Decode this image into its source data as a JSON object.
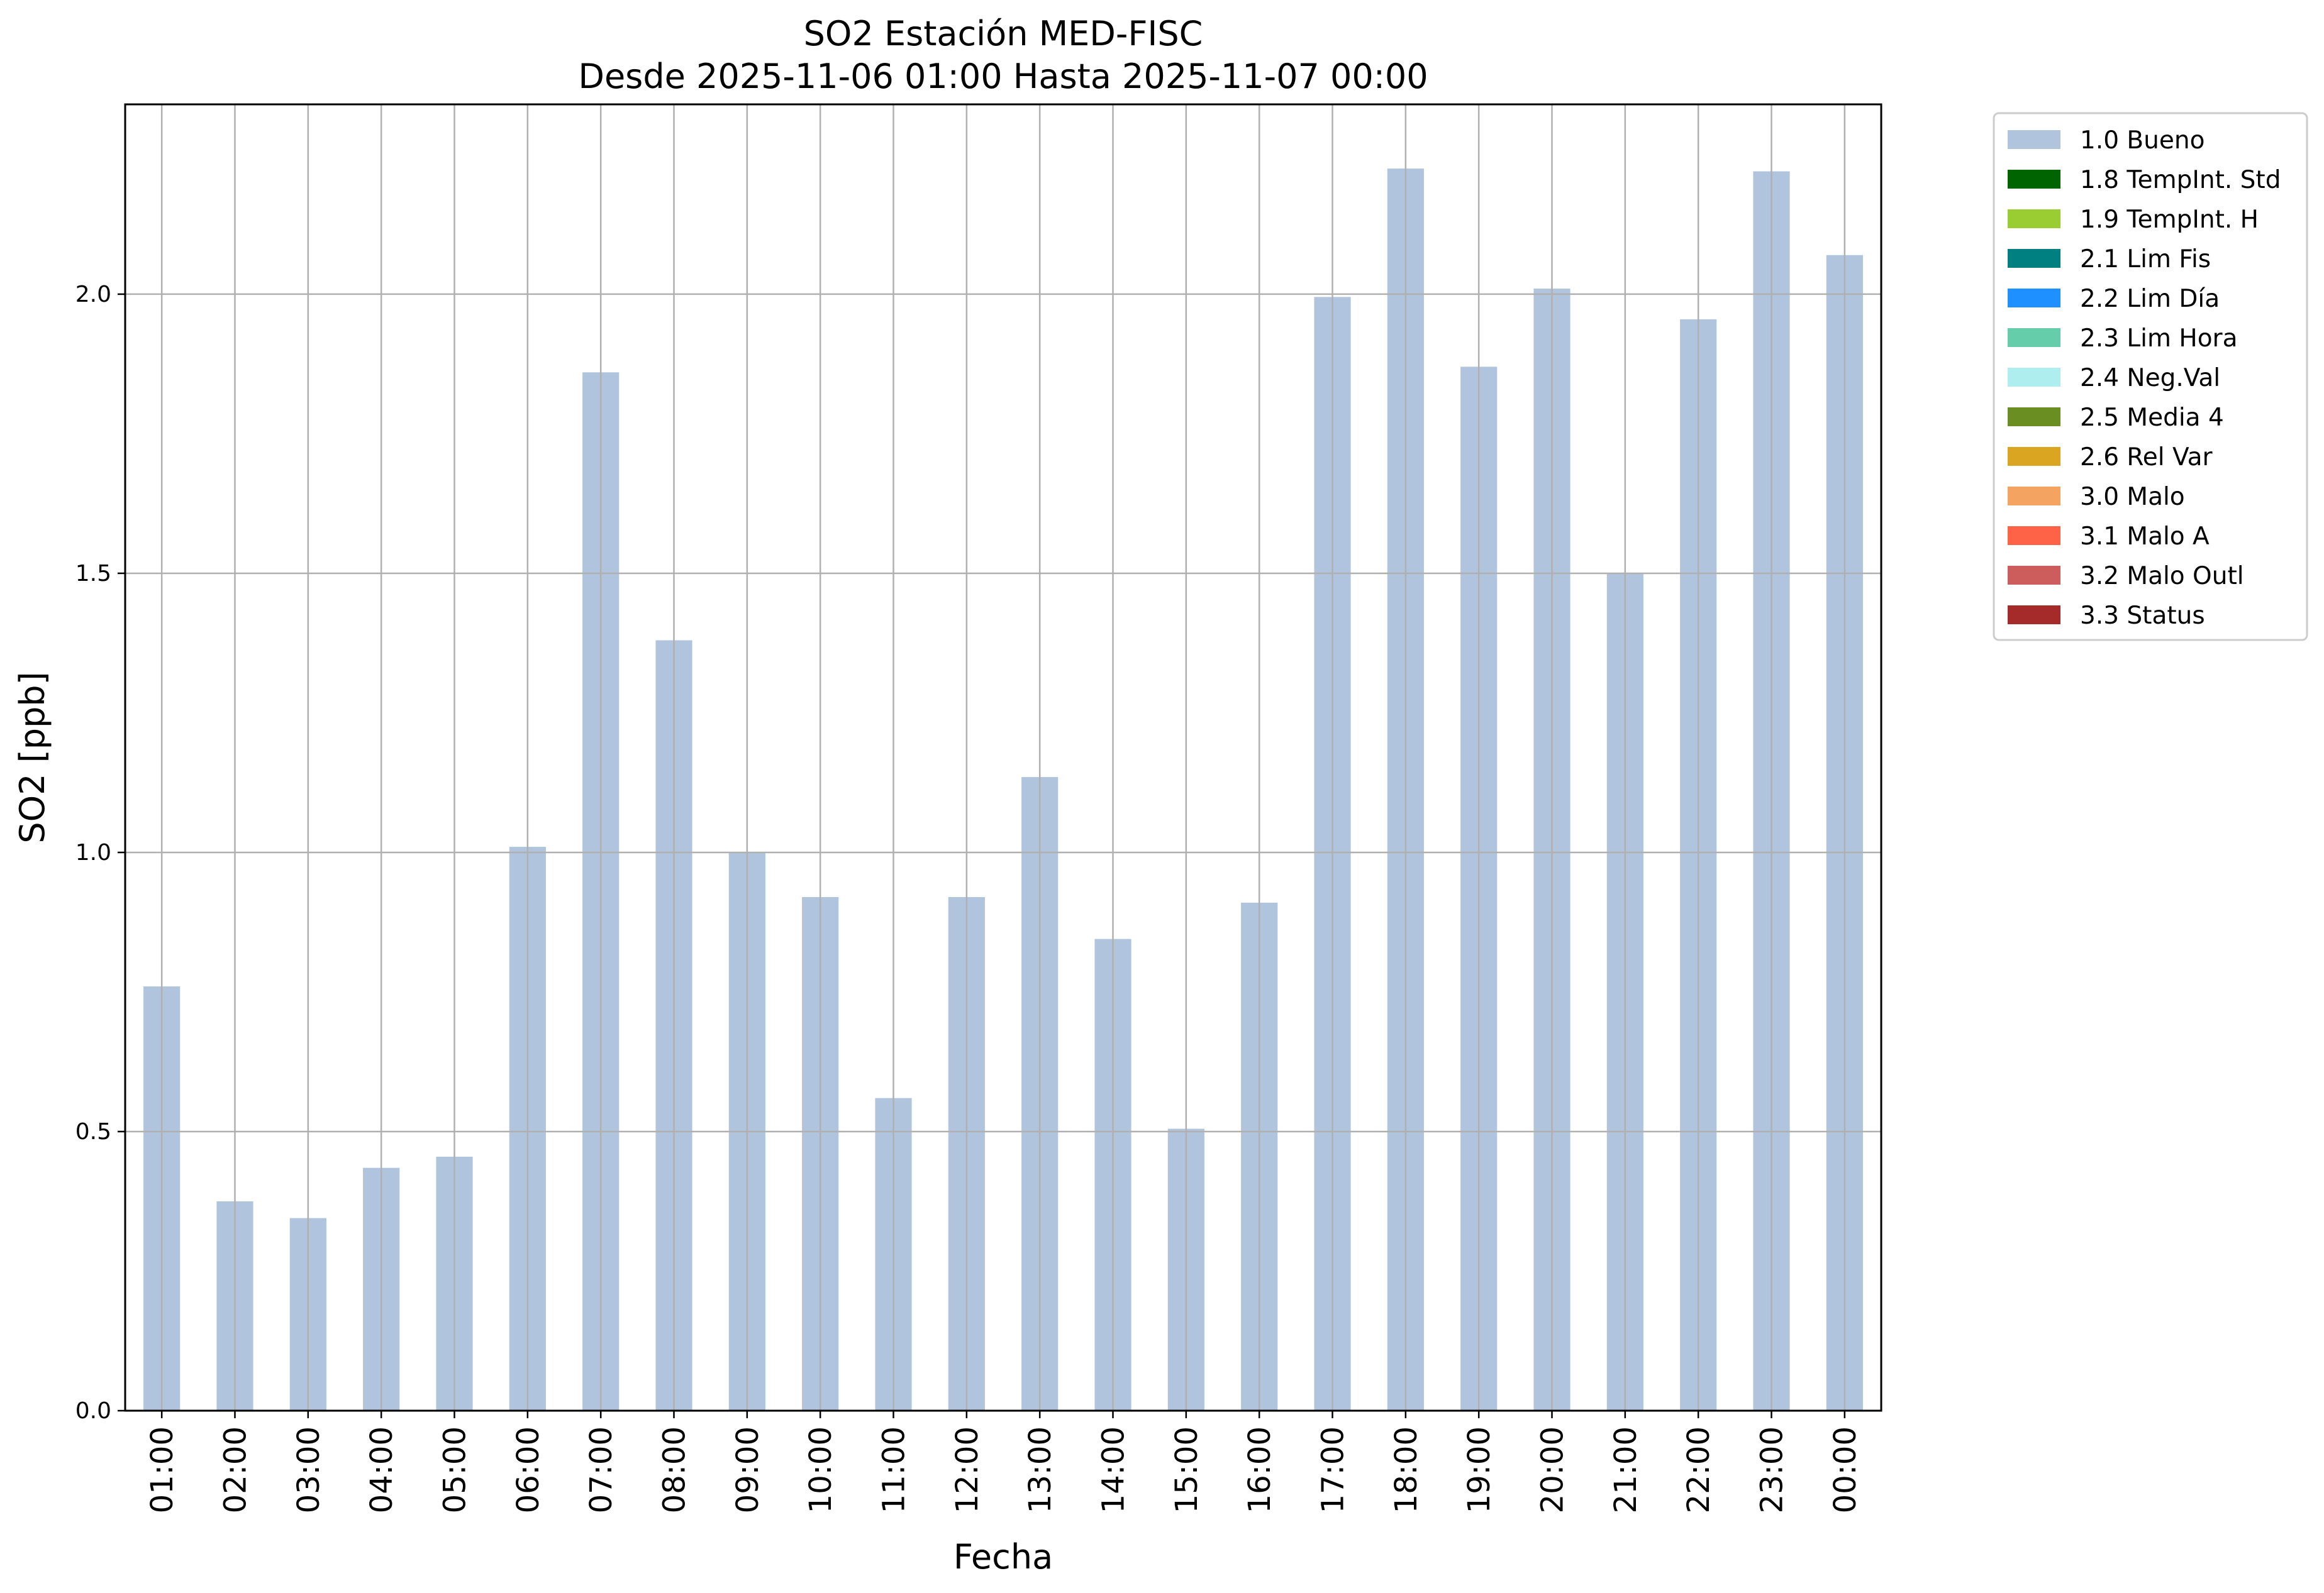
{
  "chart_data": {
    "type": "bar",
    "title": "SO2 Estación MED-FISC",
    "subtitle": "Desde 2025-11-06 01:00 Hasta 2025-11-07 00:00",
    "xlabel": "Fecha",
    "ylabel": "SO2 [ppb]",
    "ylim": [
      0,
      2.34
    ],
    "yticks": [
      0.0,
      0.5,
      1.0,
      1.5,
      2.0
    ],
    "ytick_labels": [
      "0.0",
      "0.5",
      "1.0",
      "1.5",
      "2.0"
    ],
    "grid": true,
    "legend_position": "outside-top-right",
    "categories": [
      "01:00",
      "02:00",
      "03:00",
      "04:00",
      "05:00",
      "06:00",
      "07:00",
      "08:00",
      "09:00",
      "10:00",
      "11:00",
      "12:00",
      "13:00",
      "14:00",
      "15:00",
      "16:00",
      "17:00",
      "18:00",
      "19:00",
      "20:00",
      "21:00",
      "22:00",
      "23:00",
      "00:00"
    ],
    "series": [
      {
        "name": "1.0 Bueno",
        "color": "#b0c4de",
        "values": [
          0.76,
          0.375,
          0.345,
          0.435,
          0.455,
          1.01,
          1.86,
          1.38,
          1.0,
          0.92,
          0.56,
          0.92,
          1.135,
          0.845,
          0.505,
          0.91,
          1.995,
          2.225,
          1.87,
          2.01,
          1.5,
          1.955,
          2.22,
          2.07
        ]
      }
    ],
    "legend": [
      {
        "label": "1.0 Bueno",
        "color": "#b0c4de"
      },
      {
        "label": "1.8 TempInt. Std",
        "color": "#006400"
      },
      {
        "label": "1.9 TempInt. H",
        "color": "#9acd32"
      },
      {
        "label": "2.1 Lim Fis",
        "color": "#008080"
      },
      {
        "label": "2.2 Lim Día",
        "color": "#1e90ff"
      },
      {
        "label": "2.3 Lim Hora",
        "color": "#66cdaa"
      },
      {
        "label": "2.4 Neg.Val",
        "color": "#afeeee"
      },
      {
        "label": "2.5 Media 4",
        "color": "#6b8e23"
      },
      {
        "label": "2.6 Rel Var",
        "color": "#daa520"
      },
      {
        "label": "3.0 Malo",
        "color": "#f4a460"
      },
      {
        "label": "3.1 Malo A",
        "color": "#ff6347"
      },
      {
        "label": "3.2 Malo Outl",
        "color": "#cd5c5c"
      },
      {
        "label": "3.3 Status",
        "color": "#a52a2a"
      }
    ]
  }
}
